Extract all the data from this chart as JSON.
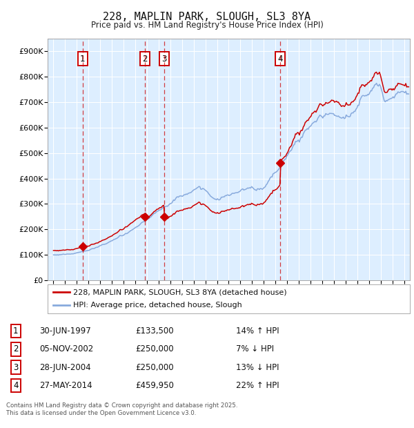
{
  "title1": "228, MAPLIN PARK, SLOUGH, SL3 8YA",
  "title2": "Price paid vs. HM Land Registry's House Price Index (HPI)",
  "ylabel_ticks": [
    "£0",
    "£100K",
    "£200K",
    "£300K",
    "£400K",
    "£500K",
    "£600K",
    "£700K",
    "£800K",
    "£900K"
  ],
  "ytick_vals": [
    0,
    100000,
    200000,
    300000,
    400000,
    500000,
    600000,
    700000,
    800000,
    900000
  ],
  "ylim": [
    0,
    950000
  ],
  "xlim_start": 1994.5,
  "xlim_end": 2025.5,
  "bg_color": "#ddeeff",
  "grid_color": "#ffffff",
  "red_line_color": "#cc0000",
  "blue_line_color": "#88aadd",
  "transactions": [
    {
      "num": 1,
      "year": 1997.5,
      "price": 133500
    },
    {
      "num": 2,
      "year": 2002.84,
      "price": 250000
    },
    {
      "num": 3,
      "year": 2004.5,
      "price": 250000
    },
    {
      "num": 4,
      "year": 2014.41,
      "price": 459950
    }
  ],
  "legend_label1": "228, MAPLIN PARK, SLOUGH, SL3 8YA (detached house)",
  "legend_label2": "HPI: Average price, detached house, Slough",
  "footnote1": "Contains HM Land Registry data © Crown copyright and database right 2025.",
  "footnote2": "This data is licensed under the Open Government Licence v3.0.",
  "table_rows": [
    {
      "num": 1,
      "date": "30-JUN-1997",
      "price": "£133,500",
      "info": "14% ↑ HPI"
    },
    {
      "num": 2,
      "date": "05-NOV-2002",
      "price": "£250,000",
      "info": "7% ↓ HPI"
    },
    {
      "num": 3,
      "date": "28-JUN-2004",
      "price": "£250,000",
      "info": "13% ↓ HPI"
    },
    {
      "num": 4,
      "date": "27-MAY-2014",
      "price": "£459,950",
      "info": "22% ↑ HPI"
    }
  ]
}
